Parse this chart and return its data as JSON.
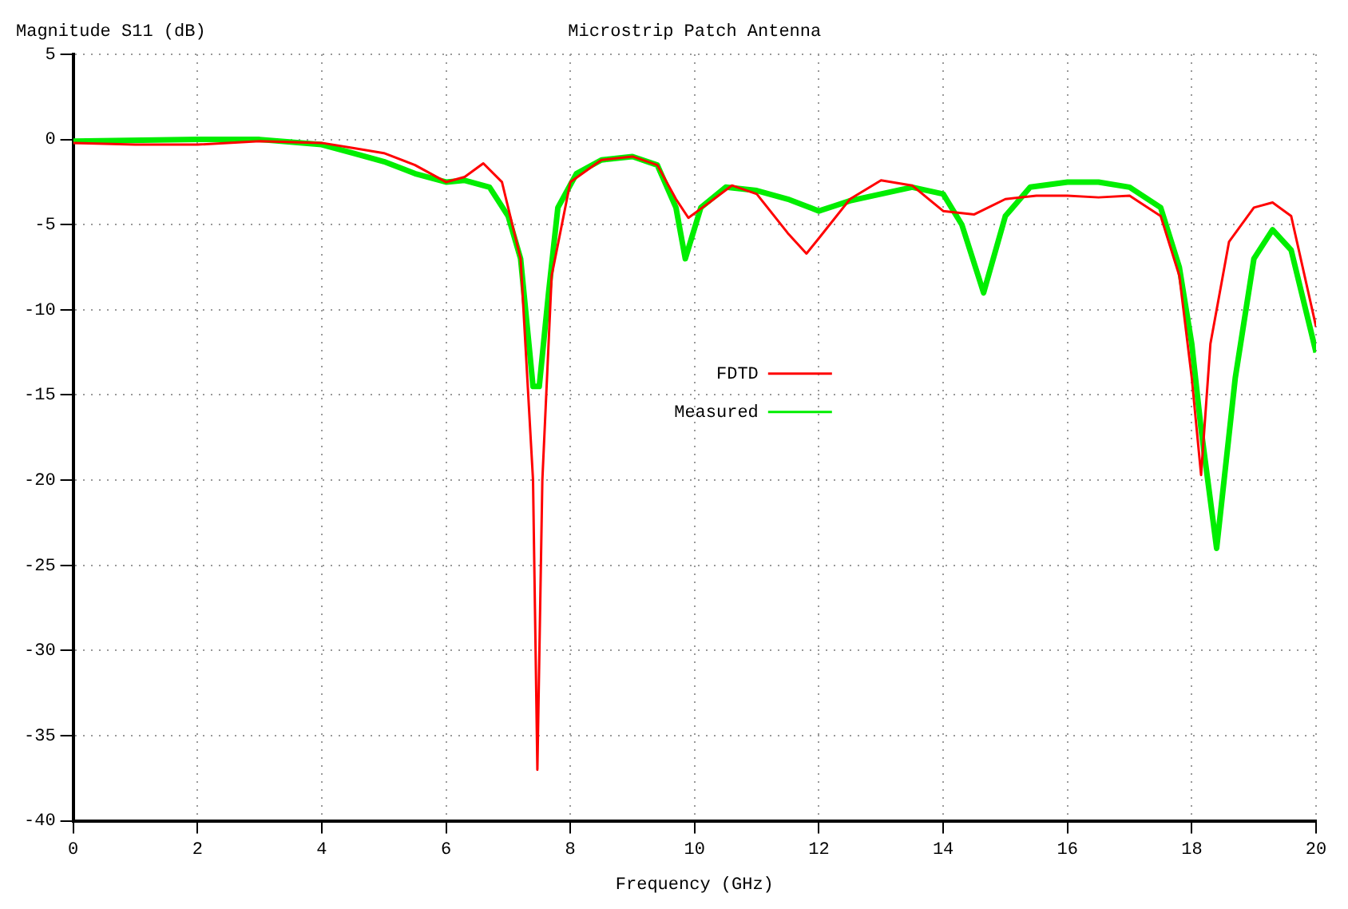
{
  "chart_data": {
    "type": "line",
    "title": "Microstrip Patch Antenna",
    "xlabel": "Frequency (GHz)",
    "ylabel": "Magnitude S11 (dB)",
    "xlim": [
      0,
      20
    ],
    "xticks": [
      0,
      2,
      4,
      6,
      8,
      10,
      12,
      14,
      16,
      18,
      20
    ],
    "ylim": [
      -40,
      5
    ],
    "yticks": [
      5,
      0,
      -5,
      -10,
      -15,
      -20,
      -25,
      -30,
      -35,
      -40
    ],
    "grid": true,
    "legend": "center",
    "marker": "none",
    "line_style": "solid",
    "series": [
      {
        "name": "FDTD",
        "color": "#ff0000",
        "x": [
          0,
          1,
          2,
          3,
          4,
          4.5,
          5,
          5.5,
          6,
          6.3,
          6.6,
          6.9,
          7.2,
          7.4,
          7.47,
          7.55,
          7.7,
          8,
          8.5,
          9,
          9.4,
          9.7,
          9.9,
          10.2,
          10.6,
          11,
          11.5,
          11.8,
          12,
          12.5,
          13,
          13.5,
          14,
          14.5,
          15,
          15.5,
          16,
          16.5,
          17,
          17.5,
          17.8,
          18,
          18.15,
          18.3,
          18.6,
          19,
          19.3,
          19.6,
          20
        ],
        "values": [
          -0.2,
          -0.3,
          -0.3,
          -0.1,
          -0.2,
          -0.5,
          -0.8,
          -1.5,
          -2.5,
          -2.2,
          -1.4,
          -2.5,
          -7,
          -20,
          -37,
          -20,
          -8,
          -2.5,
          -1.2,
          -1,
          -1.5,
          -3.5,
          -4.6,
          -3.8,
          -2.7,
          -3.2,
          -5.5,
          -6.7,
          -5.8,
          -3.5,
          -2.4,
          -2.7,
          -4.2,
          -4.4,
          -3.5,
          -3.3,
          -3.3,
          -3.4,
          -3.3,
          -4.5,
          -8,
          -14,
          -19.7,
          -12,
          -6,
          -4,
          -3.7,
          -4.5,
          -11
        ]
      },
      {
        "name": "Measured",
        "color": "#00ee00",
        "x": [
          0,
          2,
          3,
          4,
          4.5,
          5,
          5.5,
          6,
          6.3,
          6.7,
          7,
          7.2,
          7.4,
          7.5,
          7.65,
          7.8,
          8.1,
          8.5,
          9,
          9.4,
          9.7,
          9.85,
          10.1,
          10.5,
          11,
          11.5,
          12,
          12.5,
          13,
          13.5,
          14,
          14.3,
          14.65,
          15,
          15.4,
          16,
          16.5,
          17,
          17.5,
          17.8,
          18,
          18.15,
          18.4,
          18.7,
          19,
          19.3,
          19.6,
          20
        ],
        "values": [
          -0.1,
          0,
          0,
          -0.3,
          -0.8,
          -1.3,
          -2,
          -2.5,
          -2.4,
          -2.8,
          -4.5,
          -7,
          -14.5,
          -14.5,
          -9,
          -4,
          -2,
          -1.2,
          -1,
          -1.5,
          -4,
          -7,
          -4,
          -2.8,
          -3,
          -3.5,
          -4.2,
          -3.6,
          -3.2,
          -2.8,
          -3.2,
          -5,
          -9,
          -4.5,
          -2.8,
          -2.5,
          -2.5,
          -2.8,
          -4,
          -7.5,
          -12,
          -17,
          -24,
          -14,
          -7,
          -5.3,
          -6.5,
          -12.5
        ]
      }
    ]
  }
}
